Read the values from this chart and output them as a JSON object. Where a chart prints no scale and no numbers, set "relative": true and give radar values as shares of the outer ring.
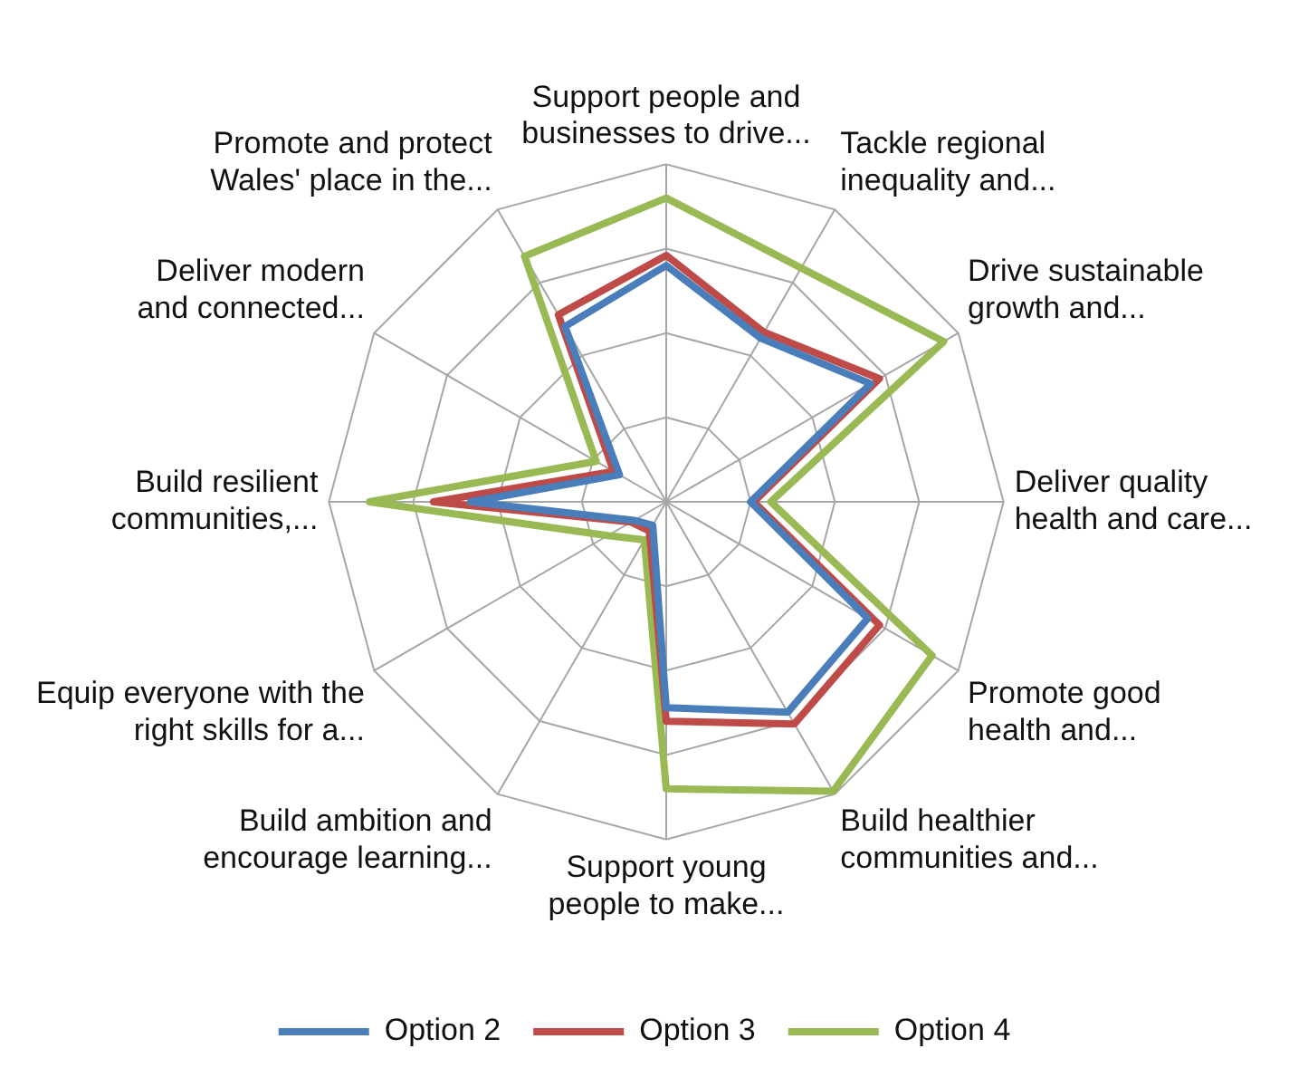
{
  "chart_data": {
    "type": "radar",
    "relative": true,
    "grid": true,
    "legend": "bottom",
    "marker": "none",
    "categories": [
      "Support people and businesses to drive...",
      "Tackle regional inequality and...",
      "Drive sustainable growth and...",
      "Deliver quality health and care...",
      "Promote good health and...",
      "Build healthier communities and...",
      "Support young people to make...",
      "Build ambition and encourage learning...",
      "Equip everyone with the right skills for a...",
      "Build resilient communities,...",
      "Deliver modern and connected...",
      "Promote and protect Wales' place in the..."
    ],
    "series": [
      {
        "name": "Option 2",
        "color": "#4a7ebb",
        "values": [
          0.7,
          0.56,
          0.7,
          0.25,
          0.69,
          0.72,
          0.61,
          0.08,
          0.11,
          0.58,
          0.16,
          0.6
        ]
      },
      {
        "name": "Option 3",
        "color": "#be4b48",
        "values": [
          0.73,
          0.58,
          0.73,
          0.26,
          0.73,
          0.76,
          0.65,
          0.1,
          0.12,
          0.69,
          0.18,
          0.64
        ]
      },
      {
        "name": "Option 4",
        "color": "#98b954",
        "values": [
          0.9,
          0.8,
          0.95,
          0.31,
          0.91,
          0.99,
          0.85,
          0.13,
          0.2,
          0.88,
          0.24,
          0.84
        ]
      }
    ]
  }
}
